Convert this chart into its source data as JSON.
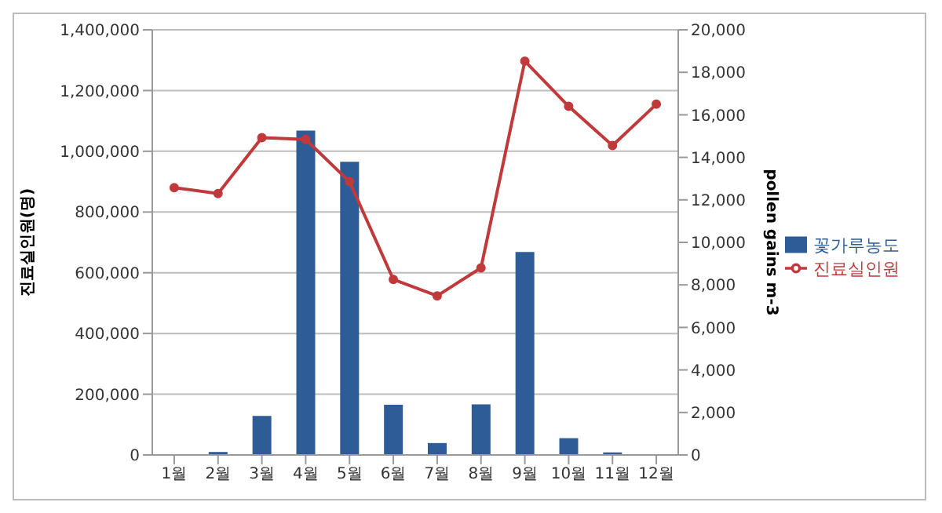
{
  "chart_data": {
    "type": "bar",
    "categories": [
      "1월",
      "2월",
      "3월",
      "4월",
      "5월",
      "6월",
      "7월",
      "8월",
      "9월",
      "10월",
      "11월",
      "12월"
    ],
    "series": [
      {
        "name": "꽃가루농도",
        "axis": "y2",
        "color": "#2e5c96",
        "values": [
          0,
          140,
          1840,
          15260,
          13790,
          2360,
          560,
          2380,
          9550,
          790,
          120,
          0
        ]
      },
      {
        "name": "진료실인원",
        "type": "line",
        "axis": "y",
        "color": "#c0393b",
        "values": [
          880000,
          861000,
          1045000,
          1039000,
          900000,
          578000,
          524000,
          616000,
          1297000,
          1148000,
          1019000,
          1155000
        ]
      }
    ],
    "ylabel": "진료실인원(명)",
    "y2label": "pollen gains m-3",
    "ylim": [
      0,
      1400000
    ],
    "yticks": [
      0,
      {
        "value": 200000,
        "label": "200,000"
      },
      {
        "value": 400000,
        "label": "400,000"
      },
      {
        "value": 600000,
        "label": "600,000"
      },
      {
        "value": 800000,
        "label": "800,000"
      },
      {
        "value": 1000000,
        "label": "1,000,000"
      },
      {
        "value": 1200000,
        "label": "1,200,000"
      },
      {
        "value": 1400000,
        "label": "1,400,000"
      }
    ],
    "y2lim": [
      0,
      20000
    ],
    "y2ticks": [
      0,
      {
        "value": 2000,
        "label": "2,000"
      },
      {
        "value": 4000,
        "label": "4,000"
      },
      {
        "value": 6000,
        "label": "6,000"
      },
      {
        "value": 8000,
        "label": "8,000"
      },
      {
        "value": 10000,
        "label": "10,000"
      },
      {
        "value": 12000,
        "label": "12,000"
      },
      {
        "value": 14000,
        "label": "14,000"
      },
      {
        "value": 16000,
        "label": "16,000"
      },
      {
        "value": 18000,
        "label": "18,000"
      },
      {
        "value": 20000,
        "label": "20,000"
      }
    ],
    "grid": "y",
    "legend": "right",
    "marker": "circle"
  }
}
